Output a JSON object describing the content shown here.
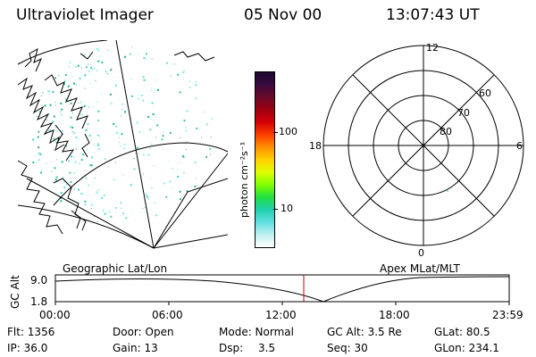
{
  "header": {
    "instrument": "Ultraviolet Imager",
    "date": "05 Nov 00",
    "time": "13:07:43 UT"
  },
  "colorbar": {
    "title": "photon cm⁻²s⁻¹",
    "ticks": [
      "100",
      "10"
    ],
    "colors": [
      "#1a0a2e",
      "#3a0a3e",
      "#6a0a2a",
      "#a00010",
      "#d40008",
      "#ff4000",
      "#ff9000",
      "#ffd000",
      "#e0ff00",
      "#80ff00",
      "#20e040",
      "#20d0b0",
      "#60e0e0",
      "#c0f0f0",
      "#ffffff"
    ]
  },
  "polar": {
    "mlt_labels": [
      "12",
      "18",
      "6",
      "0"
    ],
    "lat_labels": [
      "60",
      "70",
      "80"
    ]
  },
  "orbit": {
    "left_label": "Geographic Lat/Lon",
    "right_label": "Apex MLat/MLT",
    "axis_label": "GC Alt",
    "y_top": "9.0",
    "y_bottom": "1.8",
    "time_ticks": [
      "00:00",
      "06:00",
      "12:00",
      "18:00",
      "23:59"
    ],
    "marker_color": "#cc0000"
  },
  "status": {
    "flt": "Flt: 1356",
    "ip": "IP: 36.0",
    "door": "Door: Open",
    "gain": "Gain: 13",
    "mode": "Mode: Normal",
    "dsp_label": "Dsp:",
    "dsp_value": "3.5",
    "gc_alt": "GC Alt: 3.5 Re",
    "seq": "Seq: 30",
    "glat": "GLat: 80.5",
    "glon": "GLon: 234.1"
  }
}
